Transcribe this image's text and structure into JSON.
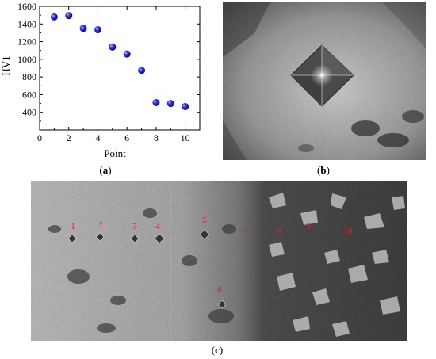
{
  "chart_data": {
    "type": "scatter",
    "title": "",
    "xlabel": "Point",
    "ylabel": "HV1",
    "xlim": [
      0,
      11
    ],
    "ylim": [
      200,
      1600
    ],
    "xticks": [
      "0",
      "2",
      "4",
      "6",
      "8",
      "10"
    ],
    "yticks": [
      "400",
      "600",
      "800",
      "1000",
      "1200",
      "1400",
      "1600"
    ],
    "grid": false,
    "series": [
      {
        "x": [
          1,
          2,
          3,
          4,
          5,
          6,
          7,
          8,
          9,
          10
        ],
        "y": [
          1480,
          1495,
          1350,
          1335,
          1140,
          1060,
          875,
          510,
          500,
          465
        ]
      }
    ],
    "marker_color": "#1a1adb"
  },
  "captions": {
    "a": "a",
    "b": "b",
    "c": "c"
  },
  "micrograph_c": {
    "point_labels": [
      "1",
      "2",
      "3",
      "4",
      "5",
      "6",
      "7",
      "8",
      "9",
      "10"
    ],
    "label_color": "#e02020"
  }
}
